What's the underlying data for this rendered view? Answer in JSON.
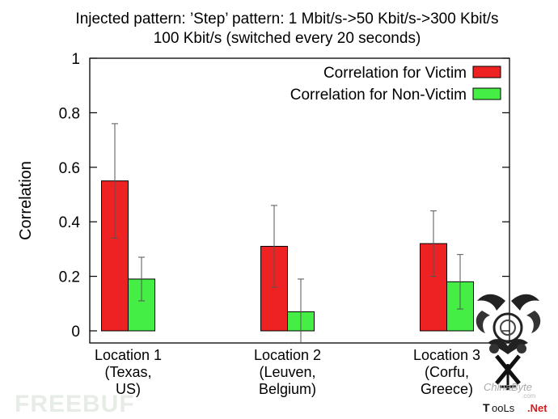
{
  "chart_data": {
    "type": "bar",
    "title": "Injected pattern: ’Step’ pattern: 1 Mbit/s->50 Kbit/s->300 Kbit/s",
    "subtitle": "100 Kbit/s (switched every 20 seconds)",
    "ylabel": "Correlation",
    "xlabel": "",
    "ylim": [
      0,
      1
    ],
    "yticks": [
      "0",
      "0.2",
      "0.4",
      "0.6",
      "0.8",
      "1"
    ],
    "yticks_values": [
      0,
      0.2,
      0.4,
      0.6,
      0.8,
      1
    ],
    "categories": [
      [
        "Location 1",
        "(Texas,",
        "US)"
      ],
      [
        "Location 2",
        "(Leuven,",
        "Belgium)"
      ],
      [
        "Location 3",
        "(Corfu,",
        "Greece)"
      ]
    ],
    "series": [
      {
        "name": "Correlation for Victim",
        "color": "#ee2222",
        "values": [
          0.55,
          0.31,
          0.32
        ],
        "err_low": [
          0.34,
          0.16,
          0.2
        ],
        "err_high": [
          0.76,
          0.46,
          0.44
        ]
      },
      {
        "name": "Correlation for Non-Victim",
        "color": "#44ee44",
        "values": [
          0.19,
          0.07,
          0.18
        ],
        "err_low": [
          0.11,
          -0.05,
          0.08
        ],
        "err_high": [
          0.27,
          0.19,
          0.28
        ]
      }
    ],
    "legend_position": "top-right",
    "grid": false
  },
  "watermarks": {
    "freebuf": "FREEBUF",
    "chinabyte": "ChinaByte",
    "chinabyte_sub": ".com",
    "tools_a": "T",
    "tools_b": "ooLs",
    "tools_c": ".Net"
  }
}
